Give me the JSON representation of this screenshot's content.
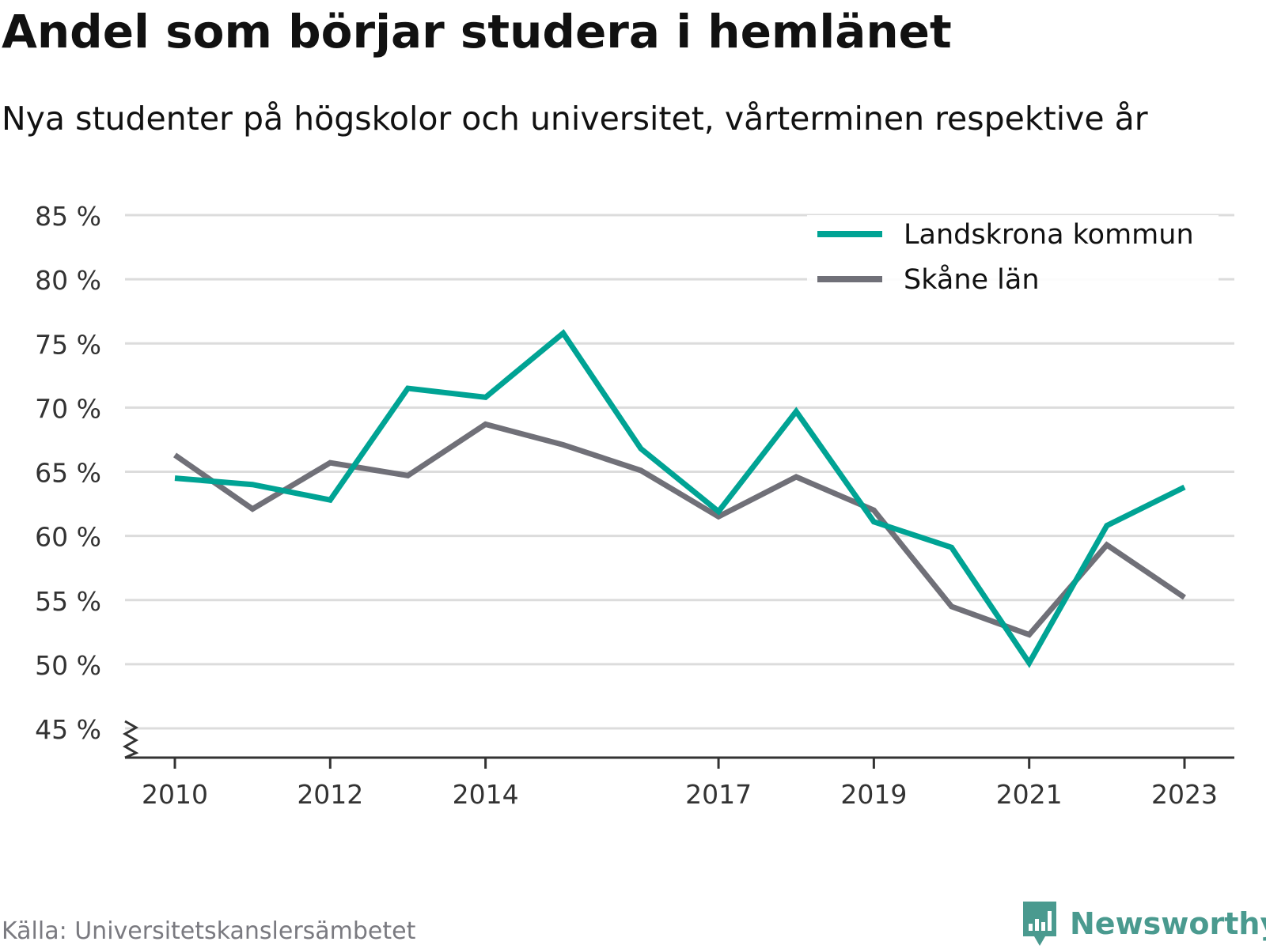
{
  "title": "Andel som börjar studera i hemlänet",
  "subtitle": "Nya studenter på högskolor och universitet, vårterminen respektive år",
  "source": "Källa: Universitetskanslersämbetet",
  "brand": {
    "name": "Newsworthy",
    "icon": "newsworthy-logo-icon",
    "color": "#4a9a8f"
  },
  "chart_data": {
    "type": "line",
    "x": [
      2010,
      2011,
      2012,
      2013,
      2014,
      2015,
      2016,
      2017,
      2018,
      2019,
      2020,
      2021,
      2022,
      2023
    ],
    "xticks": [
      2010,
      2012,
      2014,
      2017,
      2019,
      2021,
      2023
    ],
    "yticks": [
      45,
      50,
      55,
      60,
      65,
      70,
      75,
      80,
      85
    ],
    "ytick_suffix": " %",
    "ylim": [
      45,
      85
    ],
    "axis_break": true,
    "grid": true,
    "legend_position": "top-right",
    "series": [
      {
        "name": "Landskrona kommun",
        "color": "#00a394",
        "values": [
          64.5,
          64.0,
          62.8,
          71.5,
          70.8,
          75.8,
          66.8,
          61.9,
          69.7,
          61.1,
          59.1,
          50.1,
          60.8,
          63.8
        ]
      },
      {
        "name": "Skåne län",
        "color": "#707078",
        "values": [
          66.3,
          62.1,
          65.7,
          64.7,
          68.7,
          67.1,
          65.1,
          61.5,
          64.6,
          62.0,
          54.5,
          52.3,
          59.3,
          55.2
        ]
      }
    ]
  }
}
